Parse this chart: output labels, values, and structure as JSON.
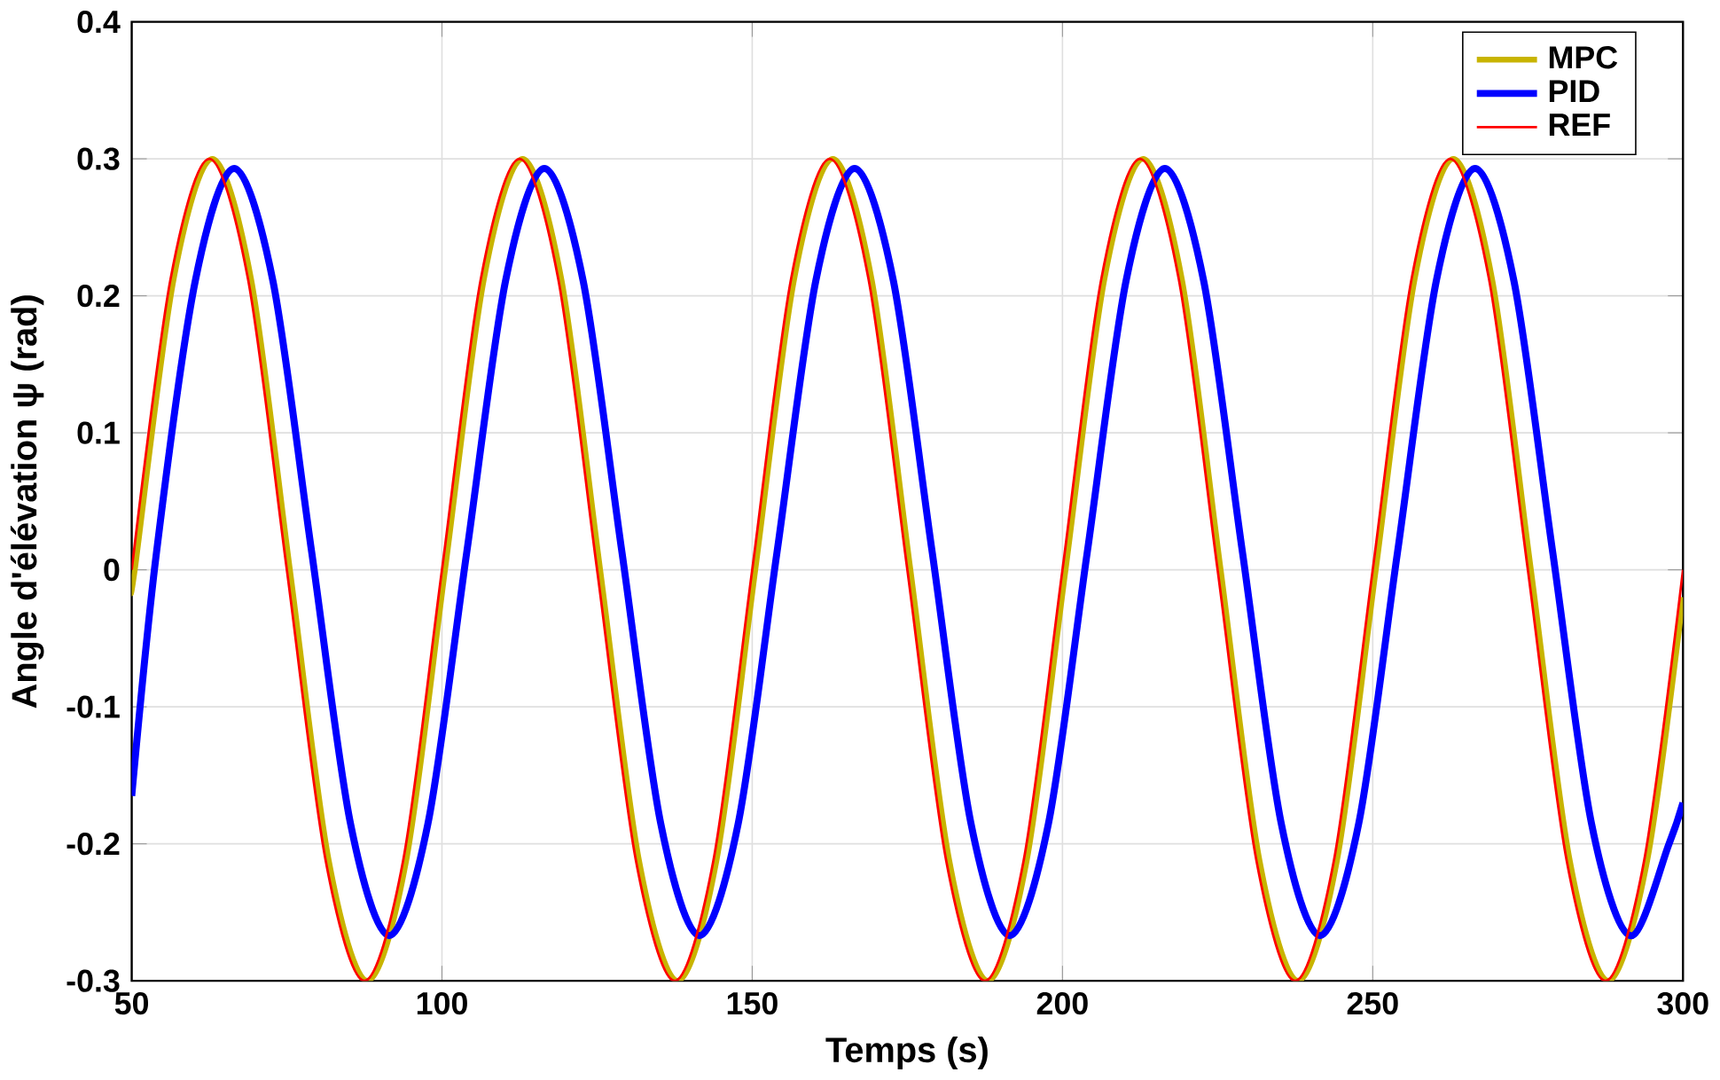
{
  "chart_data": {
    "type": "line",
    "xlabel": "Temps (s)",
    "ylabel": "Angle d'élévation ψ (rad)",
    "xlim": [
      50,
      300
    ],
    "ylim": [
      -0.3,
      0.4
    ],
    "xticks": [
      50,
      100,
      150,
      200,
      250,
      300
    ],
    "yticks": [
      -0.3,
      -0.2,
      -0.1,
      0,
      0.1,
      0.2,
      0.3,
      0.4
    ],
    "grid": true,
    "legend": "top right",
    "series": [
      {
        "name": "MPC",
        "color": "#c8b400",
        "x": [
          50,
          50.5,
          56.75,
          63,
          69.25,
          75.5,
          81.75,
          88,
          94.25,
          100.5,
          106.75,
          113,
          119.25,
          125.5,
          131.75,
          138,
          144.25,
          150.5,
          156.75,
          163,
          169.25,
          175.5,
          181.75,
          188,
          194.25,
          200.5,
          206.75,
          213,
          219.25,
          225.5,
          231.75,
          238,
          244.25,
          250.5,
          256.75,
          263,
          269.25,
          275.5,
          281.75,
          288,
          294.25,
          300
        ],
        "values": [
          -0.008,
          0,
          0.212,
          0.3,
          0.212,
          0,
          -0.212,
          -0.3,
          -0.212,
          0,
          0.212,
          0.3,
          0.212,
          0,
          -0.212,
          -0.3,
          -0.212,
          0,
          0.212,
          0.3,
          0.212,
          0,
          -0.212,
          -0.3,
          -0.212,
          0,
          0.212,
          0.3,
          0.212,
          0,
          -0.212,
          -0.3,
          -0.212,
          0,
          0.212,
          0.3,
          0.212,
          0,
          -0.212,
          -0.3,
          -0.212,
          -0.02
        ]
      },
      {
        "name": "PID",
        "color": "#0000ff",
        "x": [
          50,
          54,
          60.25,
          66.5,
          72.75,
          79,
          85.25,
          91.5,
          97.75,
          104,
          110.25,
          116.5,
          122.75,
          129,
          135.25,
          141.5,
          147.75,
          154,
          160.25,
          166.5,
          172.75,
          179,
          185.25,
          191.5,
          197.75,
          204,
          210.25,
          216.5,
          222.75,
          229,
          235.25,
          241.5,
          247.75,
          254,
          260.25,
          266.5,
          272.75,
          279,
          285.25,
          291.5,
          297.75,
          300
        ],
        "values": [
          -0.165,
          0.013,
          0.211,
          0.293,
          0.211,
          0.013,
          -0.185,
          -0.267,
          -0.185,
          0.013,
          0.211,
          0.293,
          0.211,
          0.013,
          -0.185,
          -0.267,
          -0.185,
          0.013,
          0.211,
          0.293,
          0.211,
          0.013,
          -0.185,
          -0.267,
          -0.185,
          0.013,
          0.211,
          0.293,
          0.211,
          0.013,
          -0.185,
          -0.267,
          -0.185,
          0.013,
          0.211,
          0.293,
          0.211,
          0.013,
          -0.185,
          -0.267,
          -0.2,
          -0.17
        ]
      },
      {
        "name": "REF",
        "color": "#ff0000",
        "x": [
          50,
          56.25,
          62.5,
          68.75,
          75,
          81.25,
          87.5,
          93.75,
          100,
          106.25,
          112.5,
          118.75,
          125,
          131.25,
          137.5,
          143.75,
          150,
          156.25,
          162.5,
          168.75,
          175,
          181.25,
          187.5,
          193.75,
          200,
          206.25,
          212.5,
          218.75,
          225,
          231.25,
          237.5,
          243.75,
          250,
          256.25,
          262.5,
          268.75,
          275,
          281.25,
          287.5,
          293.75,
          300
        ],
        "values": [
          0,
          0.212,
          0.3,
          0.212,
          0,
          -0.212,
          -0.3,
          -0.212,
          0,
          0.212,
          0.3,
          0.212,
          0,
          -0.212,
          -0.3,
          -0.212,
          0,
          0.212,
          0.3,
          0.212,
          0,
          -0.212,
          -0.3,
          -0.212,
          0,
          0.212,
          0.3,
          0.212,
          0,
          -0.212,
          -0.3,
          -0.212,
          0,
          0.212,
          0.3,
          0.212,
          0,
          -0.212,
          -0.3,
          -0.212,
          0
        ]
      }
    ]
  }
}
